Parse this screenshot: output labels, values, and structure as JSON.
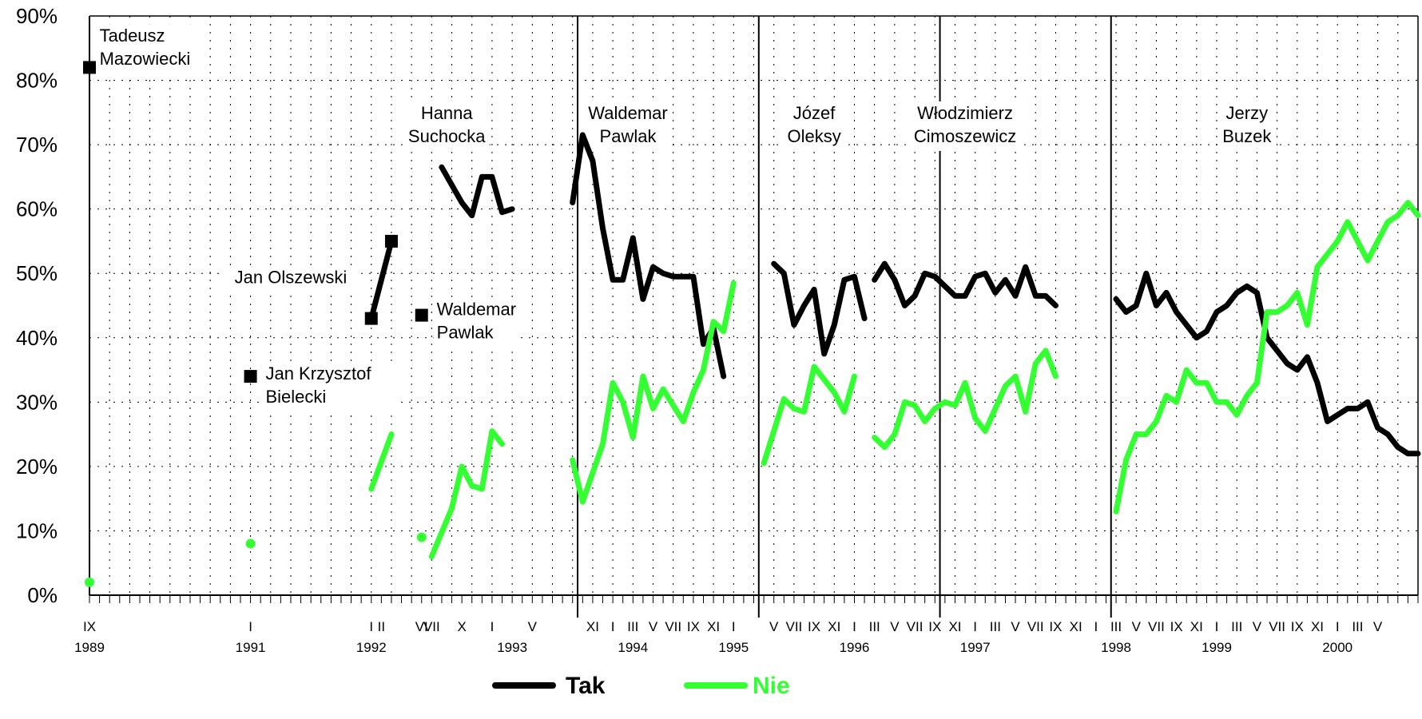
{
  "chart_data": {
    "type": "line",
    "ylim": [
      0,
      90
    ],
    "y_ticks": [
      "0%",
      "10%",
      "20%",
      "30%",
      "40%",
      "50%",
      "60%",
      "70%",
      "80%",
      "90%"
    ],
    "grid": true,
    "legend_position": "bottom-center",
    "colors": {
      "Tak": "#000000",
      "Nie": "#33ff33"
    },
    "x_tick_labels": [
      {
        "i": 0,
        "text": "IX"
      },
      {
        "i": 16,
        "text": "I"
      },
      {
        "i": 28,
        "text": "I"
      },
      {
        "i": 29,
        "text": "II"
      },
      {
        "i": 33,
        "text": "VI"
      },
      {
        "i": 34,
        "text": "VII"
      },
      {
        "i": 37,
        "text": "X"
      },
      {
        "i": 40,
        "text": "I"
      },
      {
        "i": 44,
        "text": "V"
      },
      {
        "i": 50,
        "text": "XI"
      },
      {
        "i": 52,
        "text": "I"
      },
      {
        "i": 54,
        "text": "III"
      },
      {
        "i": 56,
        "text": "V"
      },
      {
        "i": 58,
        "text": "VII"
      },
      {
        "i": 60,
        "text": "IX"
      },
      {
        "i": 62,
        "text": "XI"
      },
      {
        "i": 64,
        "text": "I"
      },
      {
        "i": 68,
        "text": "V"
      },
      {
        "i": 70,
        "text": "VII"
      },
      {
        "i": 72,
        "text": "IX"
      },
      {
        "i": 74,
        "text": "XI"
      },
      {
        "i": 76,
        "text": "I"
      },
      {
        "i": 78,
        "text": "III"
      },
      {
        "i": 80,
        "text": "V"
      },
      {
        "i": 82,
        "text": "VII"
      },
      {
        "i": 84,
        "text": "IX"
      },
      {
        "i": 86,
        "text": "XI"
      },
      {
        "i": 88,
        "text": "I"
      },
      {
        "i": 90,
        "text": "III"
      },
      {
        "i": 92,
        "text": "V"
      },
      {
        "i": 94,
        "text": "VII"
      },
      {
        "i": 96,
        "text": "IX"
      },
      {
        "i": 98,
        "text": "XI"
      },
      {
        "i": 100,
        "text": "I"
      },
      {
        "i": 102,
        "text": "III"
      },
      {
        "i": 104,
        "text": "V"
      },
      {
        "i": 106,
        "text": "VII"
      },
      {
        "i": 108,
        "text": "IX"
      },
      {
        "i": 110,
        "text": "XI"
      },
      {
        "i": 112,
        "text": "I"
      },
      {
        "i": 114,
        "text": "III"
      },
      {
        "i": 116,
        "text": "V"
      },
      {
        "i": 118,
        "text": "VII"
      },
      {
        "i": 120,
        "text": "IX"
      },
      {
        "i": 122,
        "text": "XI"
      },
      {
        "i": 124,
        "text": "I"
      },
      {
        "i": 126,
        "text": "III"
      },
      {
        "i": 128,
        "text": "V"
      }
    ],
    "year_labels": [
      {
        "i": 0,
        "text": "1989"
      },
      {
        "i": 16,
        "text": "1991"
      },
      {
        "i": 28,
        "text": "1992"
      },
      {
        "i": 42,
        "text": "1993"
      },
      {
        "i": 54,
        "text": "1994"
      },
      {
        "i": 64,
        "text": "1995"
      },
      {
        "i": 76,
        "text": "1996"
      },
      {
        "i": 88,
        "text": "1997"
      },
      {
        "i": 102,
        "text": "1998"
      },
      {
        "i": 112,
        "text": "1999"
      },
      {
        "i": 124,
        "text": "2000"
      }
    ],
    "period_boundaries": [
      48.5,
      66.5,
      84.5,
      101.5
    ],
    "period_labels": [
      {
        "lines": [
          "Tadeusz",
          "Mazowiecki"
        ],
        "i": 1,
        "y": 86
      },
      {
        "lines": [
          "Hanna",
          "Suchocka"
        ],
        "i": 35.5,
        "y": 74
      },
      {
        "lines": [
          "Waldemar",
          "Pawlak"
        ],
        "i": 53.5,
        "y": 74
      },
      {
        "lines": [
          "Józef",
          "Oleksy"
        ],
        "i": 72,
        "y": 74
      },
      {
        "lines": [
          "Włodzimierz",
          "Cimoszewicz"
        ],
        "i": 87,
        "y": 74
      },
      {
        "lines": [
          "Jerzy",
          "Buzek"
        ],
        "i": 115,
        "y": 74
      },
      {
        "lines": [
          "Jan Olszewski"
        ],
        "i": 20,
        "y": 48.5
      },
      {
        "lines": [
          "Waldemar",
          "Pawlak"
        ],
        "i": 34.5,
        "y": 43.5
      },
      {
        "lines": [
          "Jan Krzysztof",
          "Bielecki"
        ],
        "i": 17.5,
        "y": 33.5
      }
    ],
    "series": [
      {
        "name": "Tak",
        "points": [
          [
            0,
            82
          ],
          [
            16,
            34
          ],
          [
            28,
            43
          ],
          [
            30,
            55
          ],
          [
            33,
            43.5
          ]
        ],
        "segments": [
          [
            [
              28,
              43
            ],
            [
              30,
              55
            ]
          ],
          [
            [
              35,
              66.5
            ],
            [
              37,
              61
            ],
            [
              38,
              59
            ],
            [
              39,
              65
            ],
            [
              40,
              65
            ],
            [
              41,
              59.5
            ],
            [
              42,
              60
            ]
          ],
          [
            [
              48,
              61
            ],
            [
              49,
              71.5
            ],
            [
              50,
              67.5
            ],
            [
              51,
              57
            ],
            [
              52,
              49
            ],
            [
              53,
              49
            ],
            [
              54,
              55.5
            ],
            [
              55,
              46
            ],
            [
              56,
              51
            ],
            [
              57,
              50
            ],
            [
              58,
              49.5
            ],
            [
              59,
              49.5
            ],
            [
              60,
              49.5
            ],
            [
              61,
              39
            ],
            [
              62,
              41.5
            ],
            [
              63,
              34
            ]
          ],
          [
            [
              68,
              51.5
            ],
            [
              69,
              50
            ],
            [
              70,
              42
            ],
            [
              71,
              45
            ],
            [
              72,
              47.5
            ],
            [
              73,
              37.5
            ],
            [
              74,
              42
            ],
            [
              75,
              49
            ],
            [
              76,
              49.5
            ],
            [
              77,
              43
            ]
          ],
          [
            [
              78,
              49
            ],
            [
              79,
              51.5
            ],
            [
              80,
              49
            ],
            [
              81,
              45
            ],
            [
              82,
              46.5
            ],
            [
              83,
              50
            ],
            [
              84,
              49.5
            ],
            [
              85,
              48
            ],
            [
              86,
              46.5
            ],
            [
              87,
              46.5
            ],
            [
              88,
              49.5
            ],
            [
              89,
              50
            ],
            [
              90,
              47
            ],
            [
              91,
              49
            ],
            [
              92,
              46.5
            ],
            [
              93,
              51
            ],
            [
              94,
              46.5
            ],
            [
              95,
              46.5
            ],
            [
              96,
              45
            ]
          ],
          [
            [
              102,
              46
            ],
            [
              103,
              44
            ],
            [
              104,
              45
            ],
            [
              105,
              50
            ],
            [
              106,
              45
            ],
            [
              107,
              47
            ],
            [
              108,
              44
            ],
            [
              109,
              42
            ],
            [
              110,
              40
            ],
            [
              111,
              41
            ],
            [
              112,
              44
            ],
            [
              113,
              45
            ],
            [
              114,
              47
            ],
            [
              115,
              48
            ],
            [
              116,
              47
            ],
            [
              117,
              40
            ],
            [
              118,
              38
            ],
            [
              119,
              36
            ],
            [
              120,
              35
            ],
            [
              121,
              37
            ],
            [
              122,
              33
            ],
            [
              123,
              27
            ],
            [
              124,
              28
            ],
            [
              125,
              29
            ],
            [
              126,
              29
            ],
            [
              127,
              30
            ],
            [
              128,
              26
            ],
            [
              129,
              25
            ],
            [
              130,
              23
            ],
            [
              131,
              22
            ],
            [
              132,
              22
            ]
          ]
        ]
      },
      {
        "name": "Nie",
        "points": [
          [
            0,
            2
          ],
          [
            16,
            8
          ],
          [
            33,
            9
          ]
        ],
        "segments": [
          [
            [
              28,
              16.5
            ],
            [
              30,
              25
            ]
          ],
          [
            [
              34,
              6
            ],
            [
              36,
              13.5
            ],
            [
              37,
              20
            ],
            [
              38,
              17
            ],
            [
              39,
              16.5
            ],
            [
              40,
              25.5
            ],
            [
              41,
              23.5
            ]
          ],
          [
            [
              48,
              21
            ],
            [
              49,
              14.5
            ],
            [
              50,
              19
            ],
            [
              51,
              23.5
            ],
            [
              52,
              33
            ],
            [
              53,
              30
            ],
            [
              54,
              24.5
            ],
            [
              55,
              34
            ],
            [
              56,
              29
            ],
            [
              57,
              32
            ],
            [
              58,
              29.5
            ],
            [
              59,
              27
            ],
            [
              60,
              31.5
            ],
            [
              61,
              35
            ],
            [
              62,
              42.5
            ],
            [
              63,
              41
            ],
            [
              64,
              48.5
            ]
          ],
          [
            [
              67,
              20.5
            ],
            [
              68,
              25.5
            ],
            [
              69,
              30.5
            ],
            [
              70,
              29
            ],
            [
              71,
              28.5
            ],
            [
              72,
              35.5
            ],
            [
              73,
              33.5
            ],
            [
              74,
              31.5
            ],
            [
              75,
              28.5
            ],
            [
              76,
              34
            ]
          ],
          [
            [
              78,
              24.5
            ],
            [
              79,
              23
            ],
            [
              80,
              25
            ],
            [
              81,
              30
            ],
            [
              82,
              29.5
            ],
            [
              83,
              27
            ],
            [
              84,
              29
            ],
            [
              85,
              30
            ],
            [
              86,
              29.5
            ],
            [
              87,
              33
            ],
            [
              88,
              27.5
            ],
            [
              89,
              25.5
            ],
            [
              90,
              29
            ],
            [
              91,
              32.5
            ],
            [
              92,
              34
            ],
            [
              93,
              28.5
            ],
            [
              94,
              36
            ],
            [
              95,
              38
            ],
            [
              96,
              34
            ]
          ],
          [
            [
              102,
              13
            ],
            [
              103,
              21
            ],
            [
              104,
              25
            ],
            [
              105,
              25
            ],
            [
              106,
              27
            ],
            [
              107,
              31
            ],
            [
              108,
              30
            ],
            [
              109,
              35
            ],
            [
              110,
              33
            ],
            [
              111,
              33
            ],
            [
              112,
              30
            ],
            [
              113,
              30
            ],
            [
              114,
              28
            ],
            [
              115,
              31
            ],
            [
              116,
              33
            ],
            [
              117,
              44
            ],
            [
              118,
              44
            ],
            [
              119,
              45
            ],
            [
              120,
              47
            ],
            [
              121,
              42
            ],
            [
              122,
              51
            ],
            [
              123,
              53
            ],
            [
              124,
              55
            ],
            [
              125,
              58
            ],
            [
              126,
              55
            ],
            [
              127,
              52
            ],
            [
              128,
              55
            ],
            [
              129,
              58
            ],
            [
              130,
              59
            ],
            [
              131,
              61
            ],
            [
              132,
              59
            ]
          ]
        ]
      }
    ],
    "legend": [
      "Tak",
      "Nie"
    ]
  }
}
